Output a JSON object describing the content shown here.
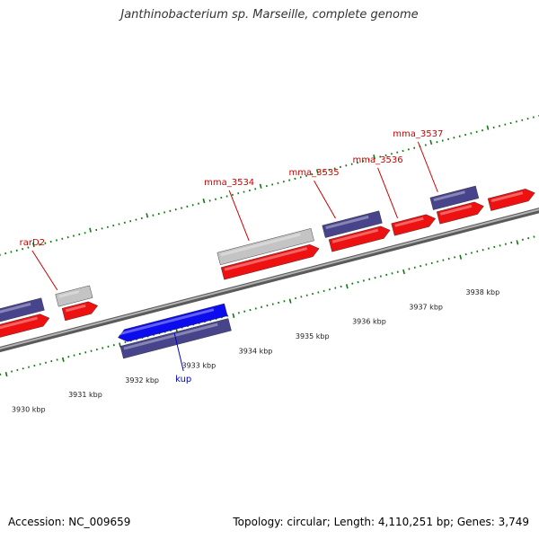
{
  "title": "Janthinobacterium sp. Marseille, complete genome",
  "accession": "Accession: NC_009659",
  "stats": "Topology: circular; Length: 4,110,251 bp; Genes: 3,749",
  "colors": {
    "forward_cds": "#ee1111",
    "forward_other": "#48448c",
    "pseudo_gene": "#c4c4c4",
    "reverse_cds": "#0c0cee",
    "label_red": "#cc0000",
    "label_blue": "#0000cc",
    "backbone": "#8c8c8c",
    "tick_green": "#117711"
  },
  "tick_labels": [
    {
      "kbp": 3930,
      "text": "3930 kbp"
    },
    {
      "kbp": 3931,
      "text": "3931 kbp"
    },
    {
      "kbp": 3932,
      "text": "3932 kbp"
    },
    {
      "kbp": 3933,
      "text": "3933 kbp"
    },
    {
      "kbp": 3934,
      "text": "3934 kbp"
    },
    {
      "kbp": 3935,
      "text": "3935 kbp"
    },
    {
      "kbp": 3936,
      "text": "3936 kbp"
    },
    {
      "kbp": 3937,
      "text": "3937 kbp"
    },
    {
      "kbp": 3938,
      "text": "3938 kbp"
    }
  ],
  "genes": [
    {
      "strand": "forward",
      "type": "other",
      "start_kbp": 3929.9,
      "end_kbp": 3930.9
    },
    {
      "strand": "forward",
      "type": "cds",
      "start_kbp": 3929.9,
      "end_kbp": 3930.95
    },
    {
      "strand": "forward",
      "type": "pseudo",
      "name": "rarD2",
      "start_kbp": 3931.15,
      "end_kbp": 3931.75
    },
    {
      "strand": "forward",
      "type": "cds",
      "start_kbp": 3931.2,
      "end_kbp": 3931.8
    },
    {
      "strand": "reverse",
      "type": "cds",
      "name": "kup",
      "start_kbp": 3932.0,
      "end_kbp": 3933.9
    },
    {
      "strand": "reverse",
      "type": "other",
      "start_kbp": 3932.0,
      "end_kbp": 3933.9
    },
    {
      "strand": "forward",
      "type": "pseudo",
      "name": "mma_3534",
      "start_kbp": 3934.0,
      "end_kbp": 3935.65
    },
    {
      "strand": "forward",
      "type": "cds",
      "start_kbp": 3934.0,
      "end_kbp": 3935.7
    },
    {
      "strand": "forward",
      "type": "other",
      "name": "mma_3535",
      "start_kbp": 3935.85,
      "end_kbp": 3936.85
    },
    {
      "strand": "forward",
      "type": "cds",
      "start_kbp": 3935.9,
      "end_kbp": 3936.95
    },
    {
      "strand": "forward",
      "type": "cds",
      "name": "mma_3536",
      "start_kbp": 3937.0,
      "end_kbp": 3937.75
    },
    {
      "strand": "forward",
      "type": "other",
      "name": "mma_3537",
      "start_kbp": 3937.75,
      "end_kbp": 3938.55
    },
    {
      "strand": "forward",
      "type": "cds",
      "start_kbp": 3937.8,
      "end_kbp": 3938.6
    },
    {
      "strand": "forward",
      "type": "cds",
      "start_kbp": 3938.7,
      "end_kbp": 3939.5
    }
  ]
}
